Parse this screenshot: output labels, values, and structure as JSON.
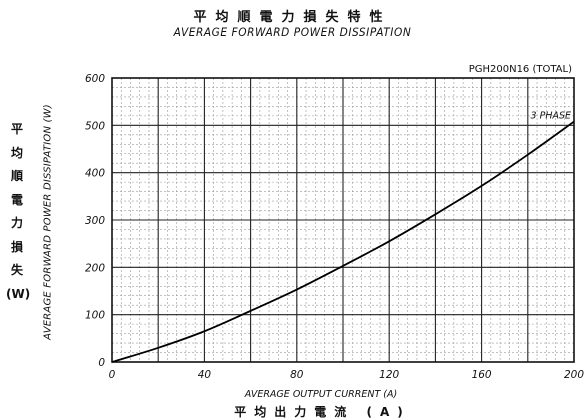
{
  "chart_data": {
    "type": "line",
    "title_jp": "平均順電力損失特性",
    "title": "AVERAGE FORWARD POWER DISSIPATION",
    "model_label": "PGH200N16 (TOTAL)",
    "ylabel_jp": [
      "平",
      "均",
      "順",
      "電",
      "力",
      "損",
      "失",
      "(W)"
    ],
    "ylabel": "AVERAGE FORWARD POWER DISSIPATION (W)",
    "xlabel": "AVERAGE OUTPUT CURRENT (A)",
    "xlabel_jp": "平均出力電流 (A)",
    "xlim": [
      0,
      200
    ],
    "ylim": [
      0,
      600
    ],
    "x_ticks": [
      "0",
      "40",
      "80",
      "120",
      "160",
      "200"
    ],
    "y_ticks": [
      "0",
      "100",
      "200",
      "300",
      "400",
      "500",
      "600"
    ],
    "grid": true,
    "series": [
      {
        "name": "3 PHASE",
        "x": [
          0,
          20,
          40,
          60,
          80,
          100,
          120,
          140,
          160,
          180,
          200
        ],
        "y": [
          0,
          30,
          65,
          108,
          153,
          203,
          255,
          312,
          372,
          438,
          508
        ]
      }
    ]
  }
}
